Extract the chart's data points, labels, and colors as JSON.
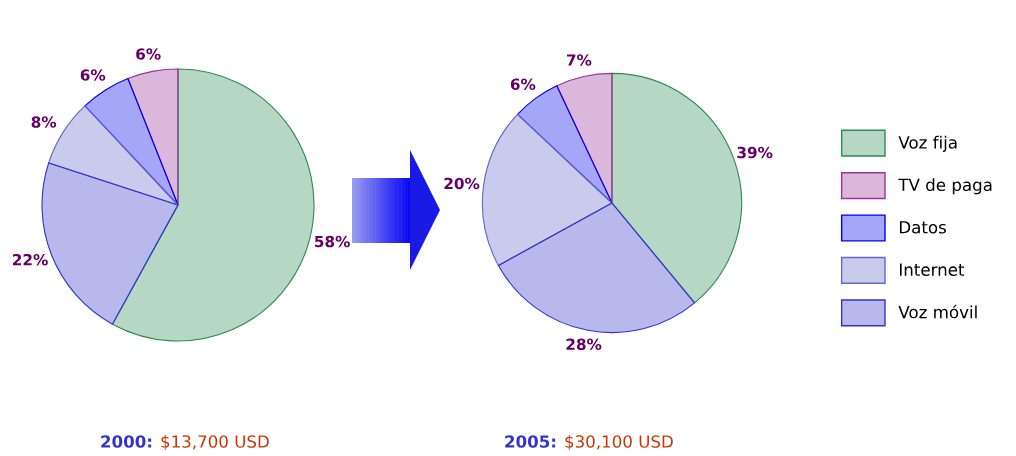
{
  "chart_data": [
    {
      "type": "pie",
      "categories": [
        "Voz fija",
        "TV de paga",
        "Datos",
        "Internet",
        "Voz móvil"
      ],
      "values": [
        58,
        6,
        6,
        8,
        22
      ],
      "colors": [
        "#2e8b57",
        "#993399",
        "#0000ee",
        "#6666cc",
        "#3333cc"
      ],
      "value_labels": [
        "58%",
        "6%",
        "6%",
        "8%",
        "22%"
      ],
      "annotations": [
        "2000:",
        "$13,700 USD"
      ],
      "legend": "right"
    },
    {
      "type": "pie",
      "categories": [
        null,
        null,
        null,
        null,
        null
      ],
      "values": [
        39,
        7,
        6,
        20,
        28
      ],
      "colors": [
        "#2e8b57",
        "#993399",
        "#0000ee",
        "#6666cc",
        "#3333cc"
      ],
      "value_labels": [
        "39%",
        "7%",
        "6%",
        "20%",
        "28%"
      ],
      "annotations": [
        "2005:",
        "$30,100 USD"
      ]
    }
  ]
}
